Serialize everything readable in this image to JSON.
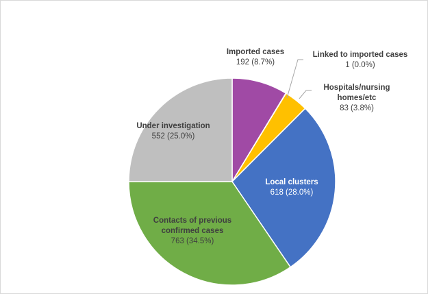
{
  "chart_data": {
    "type": "pie",
    "title": "",
    "legend": "none",
    "slices": [
      {
        "name": "Imported cases",
        "value": 192,
        "percent": "8.7%",
        "label_lines": [
          "Imported cases"
        ],
        "value_text": "192 (8.7%)",
        "color": "#a04aa5",
        "text_color": "#404040"
      },
      {
        "name": "Linked to imported cases",
        "value": 1,
        "percent": "0.0%",
        "label_lines": [
          "Linked to imported cases"
        ],
        "value_text": "1 (0.0%)",
        "color": "#ffffff",
        "text_color": "#404040"
      },
      {
        "name": "Hospitals/nursing homes/etc",
        "value": 83,
        "percent": "3.8%",
        "label_lines": [
          "Hospitals/nursing",
          "homes/etc"
        ],
        "value_text": "83 (3.8%)",
        "color": "#ffc000",
        "text_color": "#404040"
      },
      {
        "name": "Local clusters",
        "value": 618,
        "percent": "28.0%",
        "label_lines": [
          "Local clusters"
        ],
        "value_text": "618 (28.0%)",
        "color": "#4472c4",
        "text_color": "#ffffff"
      },
      {
        "name": "Contacts of previous confirmed cases",
        "value": 763,
        "percent": "34.5%",
        "label_lines": [
          "Contacts of previous",
          "confirmed cases"
        ],
        "value_text": "763 (34.5%)",
        "color": "#70ad47",
        "text_color": "#404040"
      },
      {
        "name": "Under investigation",
        "value": 552,
        "percent": "25.0%",
        "label_lines": [
          "Under investigation"
        ],
        "value_text": "552 (25.0%)",
        "color": "#bfbfbf",
        "text_color": "#404040"
      }
    ]
  }
}
